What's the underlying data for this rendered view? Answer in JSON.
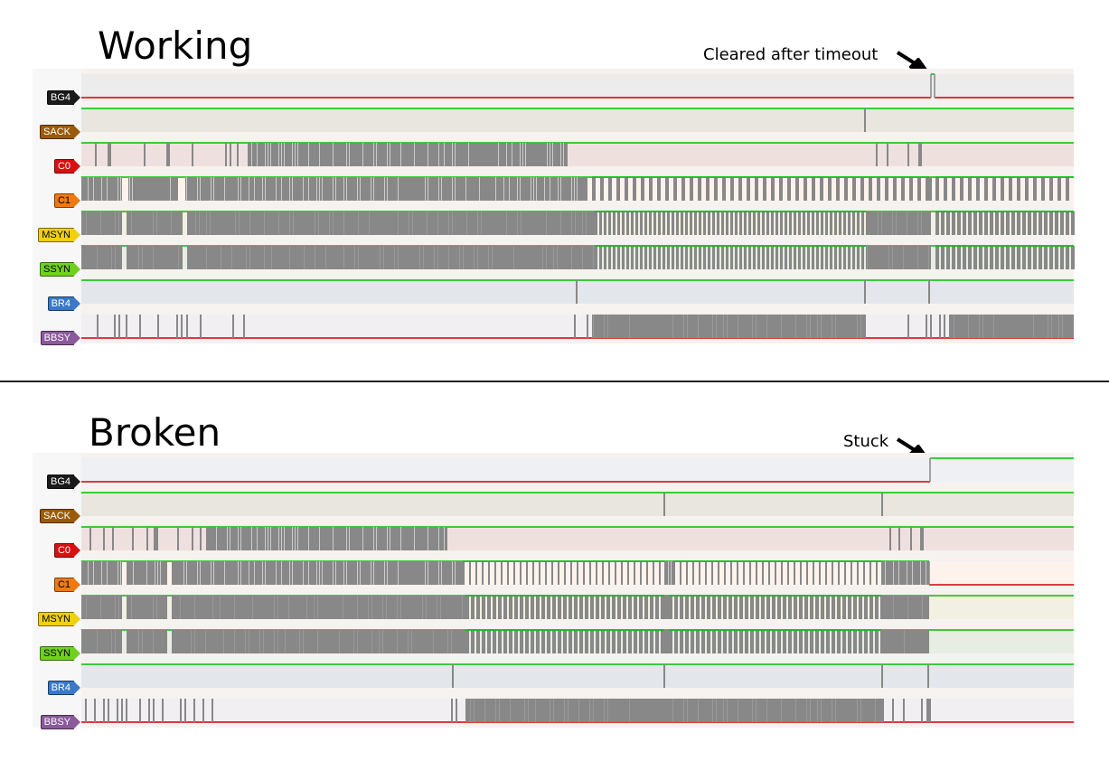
{
  "panels": [
    {
      "title": "Working",
      "annotation": "Cleared after timeout"
    },
    {
      "title": "Broken",
      "annotation": "Stuck"
    }
  ],
  "signals": [
    {
      "label": "BG4",
      "color": "#1a1a1a",
      "text": "#ffffff",
      "bg": "#ececec"
    },
    {
      "label": "SACK",
      "color": "#9a5a08",
      "text": "#ffffff",
      "bg": "#e9e6e0"
    },
    {
      "label": "C0",
      "color": "#d81010",
      "text": "#ffffff",
      "bg": "#efe0e0"
    },
    {
      "label": "C1",
      "color": "#f07a10",
      "text": "#000000",
      "bg": "#fdf3ec"
    },
    {
      "label": "MSYN",
      "color": "#f0d010",
      "text": "#000000",
      "bg": "#f2f0e2"
    },
    {
      "label": "SSYN",
      "color": "#70d020",
      "text": "#000000",
      "bg": "#e8ede3"
    },
    {
      "label": "BR4",
      "color": "#3a78c8",
      "text": "#ffffff",
      "bg": "#e3e6eb"
    },
    {
      "label": "BBSY",
      "color": "#8a5a9a",
      "text": "#ffffff",
      "bg": "#f1eff2"
    }
  ],
  "colors": {
    "high": "#00c000",
    "low": "#d00000",
    "edge": "#888888"
  }
}
